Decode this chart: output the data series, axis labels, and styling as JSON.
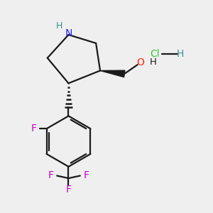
{
  "background_color": "#efefef",
  "bond_color": "#1a1a1a",
  "N_color": "#2020ff",
  "H_on_N_color": "#3d9090",
  "O_color": "#ff2200",
  "H_on_O_color": "#1a1a1a",
  "F_color": "#cc00cc",
  "Cl_color": "#33cc33",
  "H_on_Cl_color": "#3d9090",
  "wedge_color": "#1a1a1a",
  "fig_w": 3.0,
  "fig_h": 3.0,
  "dpi": 100,
  "xlim": [
    0,
    10
  ],
  "ylim": [
    0,
    10
  ]
}
